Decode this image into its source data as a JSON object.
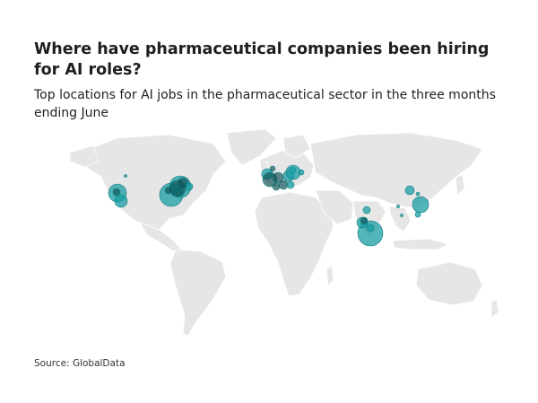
{
  "title": "Where have pharmaceutical companies been hiring for AI roles?",
  "subtitle": "Top locations for AI jobs in the pharmaceutical sector in the three months ending June",
  "source": "Source: GlobalData",
  "colors": {
    "land": "#e6e6e6",
    "border": "#ffffff",
    "bubble": "#1a9ea3",
    "bubble_dark": "#0b4e52"
  }
}
